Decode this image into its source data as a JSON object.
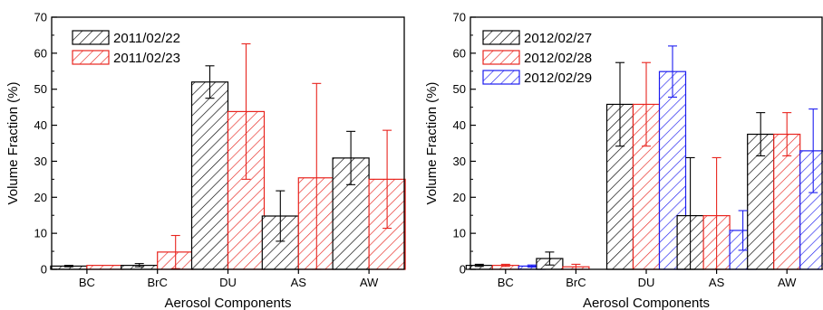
{
  "colors": {
    "black": "#000000",
    "red": "#e8251f",
    "blue": "#1d1df0"
  },
  "chart_data": [
    {
      "type": "bar",
      "xlabel": "Aerosol Components",
      "ylabel": "Volume Fraction (%)",
      "ylim": [
        0,
        70
      ],
      "yticks": [
        0,
        10,
        20,
        30,
        40,
        50,
        60,
        70
      ],
      "legend_position": "top-left",
      "hatch": "diagonal",
      "categories": [
        "BC",
        "BrC",
        "DU",
        "AS",
        "AW"
      ],
      "series": [
        {
          "name": "2011/02/22",
          "color": "#000000",
          "values": [
            0.9,
            1.1,
            52.0,
            14.8,
            30.9
          ],
          "err_lo": [
            0.2,
            0.4,
            4.5,
            7.0,
            7.4
          ],
          "err_hi": [
            0.2,
            0.5,
            4.5,
            7.0,
            7.4
          ]
        },
        {
          "name": "2011/02/23",
          "color": "#e8251f",
          "values": [
            1.1,
            4.8,
            43.8,
            25.4,
            25.0
          ],
          "err_lo": [
            0.0,
            4.6,
            18.8,
            25.4,
            13.6
          ],
          "err_hi": [
            0.0,
            4.6,
            18.8,
            26.2,
            13.6
          ]
        }
      ]
    },
    {
      "type": "bar",
      "xlabel": "Aerosol Components",
      "ylabel": "Volume Fraction (%)",
      "ylim": [
        0,
        70
      ],
      "yticks": [
        0,
        10,
        20,
        30,
        40,
        50,
        60,
        70
      ],
      "legend_position": "top-left",
      "hatch": "diagonal",
      "categories": [
        "BC",
        "BrC",
        "DU",
        "AS",
        "AW"
      ],
      "series": [
        {
          "name": "2012/02/27",
          "color": "#000000",
          "values": [
            1.1,
            3.0,
            45.8,
            14.9,
            37.5
          ],
          "err_lo": [
            0.3,
            1.8,
            11.6,
            14.9,
            6.0
          ],
          "err_hi": [
            0.3,
            1.8,
            11.6,
            16.1,
            6.0
          ]
        },
        {
          "name": "2012/02/28",
          "color": "#e8251f",
          "values": [
            1.1,
            0.7,
            45.8,
            14.9,
            37.5
          ],
          "err_lo": [
            0.3,
            0.7,
            11.6,
            14.9,
            6.0
          ],
          "err_hi": [
            0.3,
            0.7,
            11.6,
            16.1,
            6.0
          ]
        },
        {
          "name": "2012/02/29",
          "color": "#1d1df0",
          "values": [
            0.9,
            0.0,
            54.9,
            10.8,
            32.9
          ],
          "err_lo": [
            0.3,
            0.0,
            7.1,
            5.5,
            11.6
          ],
          "err_hi": [
            0.3,
            0.0,
            7.1,
            5.5,
            11.6
          ]
        }
      ]
    }
  ]
}
